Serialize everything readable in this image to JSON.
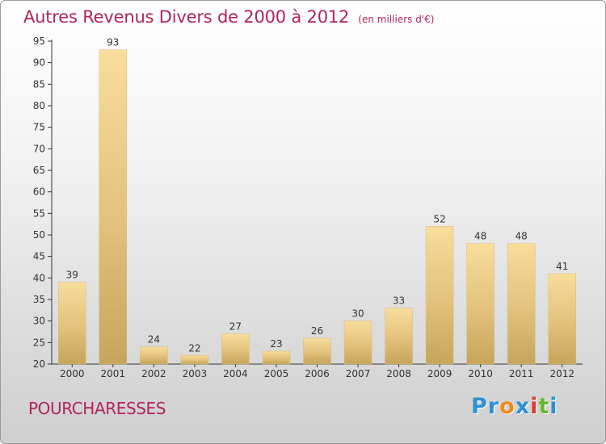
{
  "title": "Autres Revenus Divers de 2000 à 2012",
  "subtitle": "(en milliers d'€)",
  "commune": "POURCHARESSES",
  "logo": {
    "text": "Proxiti",
    "letters": [
      "P",
      "r",
      "o",
      "x",
      "i",
      "t",
      "i"
    ],
    "colors": [
      "#2f8fd0",
      "#2f8fd0",
      "#f08a1c",
      "#2f8fd0",
      "#e23b2a",
      "#67b62f",
      "#2f8fd0"
    ]
  },
  "colors": {
    "title": "#b0245c",
    "bar_light": "#f7dc9a",
    "bar_dark": "#c9a95f"
  },
  "chart_data": {
    "type": "bar",
    "title": "Autres Revenus Divers de 2000 à 2012",
    "subtitle": "(en milliers d'€)",
    "categories": [
      "2000",
      "2001",
      "2002",
      "2003",
      "2004",
      "2005",
      "2006",
      "2007",
      "2008",
      "2009",
      "2010",
      "2011",
      "2012"
    ],
    "values": [
      39,
      93,
      24,
      22,
      27,
      23,
      26,
      30,
      33,
      52,
      48,
      48,
      41
    ],
    "data_labels": [
      "39",
      "93",
      "24",
      "22",
      "27",
      "23",
      "26",
      "30",
      "33",
      "52",
      "48",
      "48",
      "41"
    ],
    "xlabel": "",
    "ylabel": "",
    "ylim": [
      20,
      95
    ],
    "yticks": [
      20,
      25,
      30,
      35,
      40,
      45,
      50,
      55,
      60,
      65,
      70,
      75,
      80,
      85,
      90,
      95
    ],
    "grid": false,
    "legend": "none"
  }
}
